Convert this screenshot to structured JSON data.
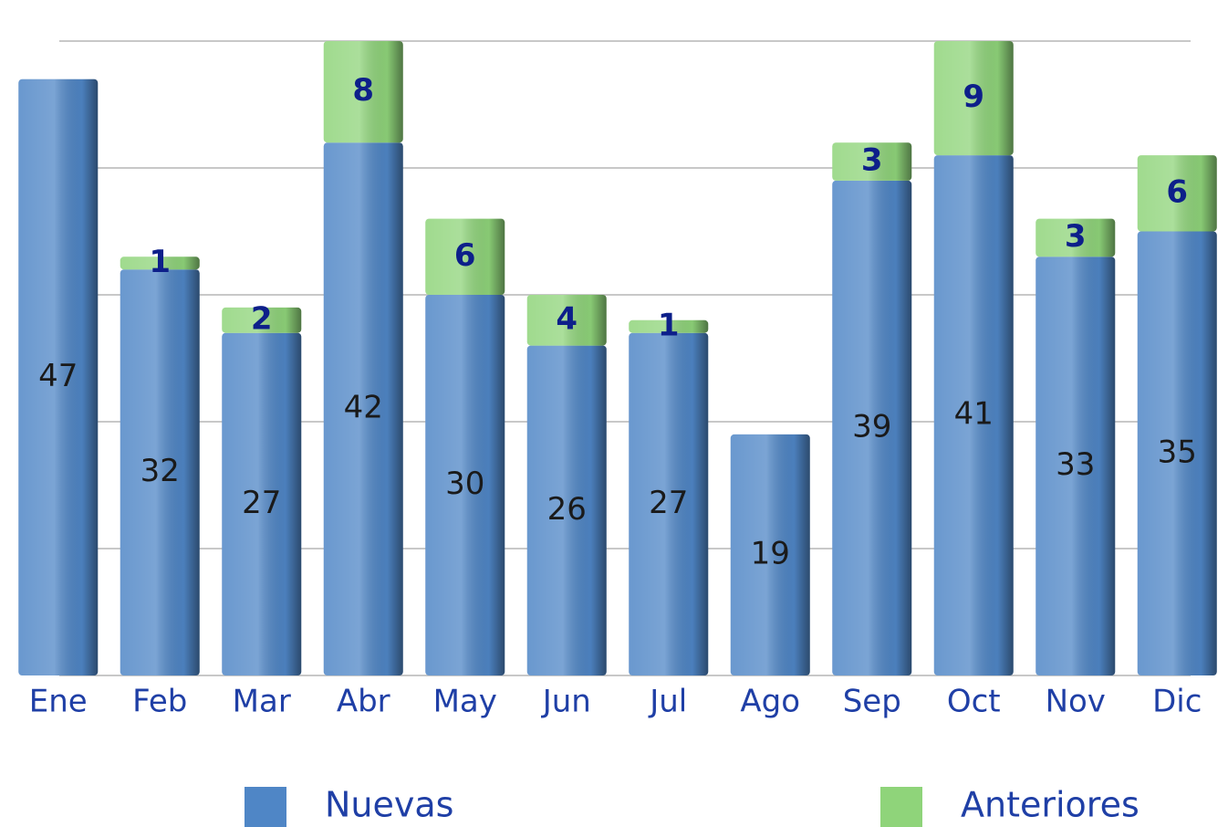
{
  "chart_data": {
    "type": "stacked_bar",
    "categories": [
      "Ene",
      "Feb",
      "Mar",
      "Abr",
      "May",
      "Jun",
      "Jul",
      "Ago",
      "Sep",
      "Oct",
      "Nov",
      "Dic"
    ],
    "series": [
      {
        "name": "Nuevas",
        "color": "#4f86c6",
        "values": [
          47,
          32,
          27,
          42,
          30,
          26,
          27,
          19,
          39,
          41,
          33,
          35
        ]
      },
      {
        "name": "Anteriores",
        "color": "#8fd47a",
        "values": [
          null,
          1,
          2,
          8,
          6,
          4,
          1,
          null,
          3,
          9,
          3,
          6
        ]
      }
    ],
    "ylim": [
      0,
      50
    ],
    "yticks": [
      0,
      10,
      20,
      30,
      40,
      50
    ],
    "grid": true
  }
}
